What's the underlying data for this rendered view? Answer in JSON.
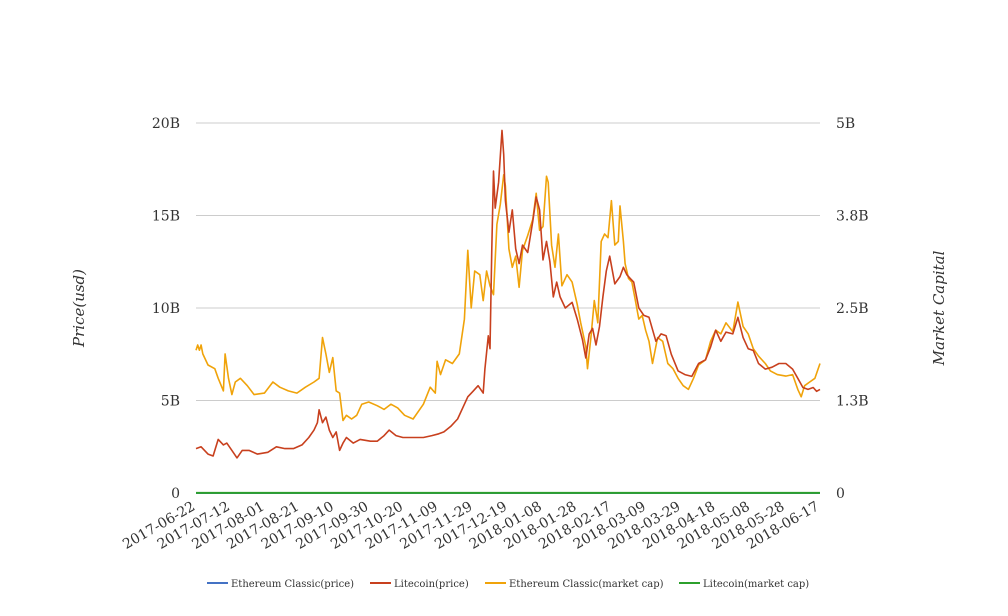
{
  "chart_data": {
    "type": "line",
    "ylabel_left": "Price(usd)",
    "ylabel_right": "Market Capital",
    "left_ticks": [
      "0",
      "5B",
      "10B",
      "15B",
      "20B"
    ],
    "right_ticks": [
      "0",
      "1.3B",
      "2.5B",
      "3.8B",
      "5B"
    ],
    "left_ylim": [
      0,
      20
    ],
    "right_ylim": [
      0,
      5
    ],
    "x_ticks": [
      "2017-06-22",
      "2017-07-12",
      "2017-08-01",
      "2017-08-21",
      "2017-09-10",
      "2017-09-30",
      "2017-10-20",
      "2017-11-09",
      "2017-11-29",
      "2017-12-19",
      "2018-01-08",
      "2018-01-28",
      "2018-02-17",
      "2018-03-09",
      "2018-03-29",
      "2018-04-18",
      "2018-05-08",
      "2018-05-28",
      "2018-06-17"
    ],
    "x_range": [
      "2017-06-22",
      "2018-06-22"
    ],
    "grid": "horizontal",
    "legend_position": "bottom",
    "series": [
      {
        "name": "Ethereum Classic(price)",
        "color": "#4472c4",
        "axis": "left",
        "points": [
          [
            "2017-06-22",
            0.001
          ],
          [
            "2018-06-22",
            0.001
          ]
        ]
      },
      {
        "name": "Litecoin(price)",
        "color": "#c8401e",
        "axis": "left",
        "points": [
          [
            "2017-06-22",
            2.4
          ],
          [
            "2017-06-25",
            2.5
          ],
          [
            "2017-06-29",
            2.1
          ],
          [
            "2017-07-02",
            2.0
          ],
          [
            "2017-07-05",
            2.9
          ],
          [
            "2017-07-08",
            2.6
          ],
          [
            "2017-07-10",
            2.7
          ],
          [
            "2017-07-13",
            2.3
          ],
          [
            "2017-07-16",
            1.9
          ],
          [
            "2017-07-19",
            2.3
          ],
          [
            "2017-07-23",
            2.3
          ],
          [
            "2017-07-28",
            2.1
          ],
          [
            "2017-08-03",
            2.2
          ],
          [
            "2017-08-08",
            2.5
          ],
          [
            "2017-08-13",
            2.4
          ],
          [
            "2017-08-18",
            2.4
          ],
          [
            "2017-08-23",
            2.6
          ],
          [
            "2017-08-27",
            3.0
          ],
          [
            "2017-08-30",
            3.4
          ],
          [
            "2017-09-01",
            3.8
          ],
          [
            "2017-09-02",
            4.5
          ],
          [
            "2017-09-04",
            3.8
          ],
          [
            "2017-09-06",
            4.1
          ],
          [
            "2017-09-08",
            3.4
          ],
          [
            "2017-09-10",
            3.0
          ],
          [
            "2017-09-12",
            3.3
          ],
          [
            "2017-09-14",
            2.3
          ],
          [
            "2017-09-16",
            2.7
          ],
          [
            "2017-09-18",
            3.0
          ],
          [
            "2017-09-22",
            2.7
          ],
          [
            "2017-09-26",
            2.9
          ],
          [
            "2017-10-02",
            2.8
          ],
          [
            "2017-10-06",
            2.8
          ],
          [
            "2017-10-10",
            3.1
          ],
          [
            "2017-10-13",
            3.4
          ],
          [
            "2017-10-17",
            3.1
          ],
          [
            "2017-10-21",
            3.0
          ],
          [
            "2017-10-27",
            3.0
          ],
          [
            "2017-11-02",
            3.0
          ],
          [
            "2017-11-07",
            3.1
          ],
          [
            "2017-11-11",
            3.2
          ],
          [
            "2017-11-14",
            3.3
          ],
          [
            "2017-11-18",
            3.6
          ],
          [
            "2017-11-22",
            4.0
          ],
          [
            "2017-11-25",
            4.6
          ],
          [
            "2017-11-28",
            5.2
          ],
          [
            "2017-12-01",
            5.5
          ],
          [
            "2017-12-04",
            5.8
          ],
          [
            "2017-12-07",
            5.4
          ],
          [
            "2017-12-08",
            6.7
          ],
          [
            "2017-12-10",
            8.5
          ],
          [
            "2017-12-11",
            7.8
          ],
          [
            "2017-12-12",
            13.2
          ],
          [
            "2017-12-13",
            17.4
          ],
          [
            "2017-12-14",
            15.4
          ],
          [
            "2017-12-16",
            16.8
          ],
          [
            "2017-12-18",
            19.6
          ],
          [
            "2017-12-19",
            18.3
          ],
          [
            "2017-12-20",
            15.8
          ],
          [
            "2017-12-22",
            14.1
          ],
          [
            "2017-12-24",
            15.3
          ],
          [
            "2017-12-26",
            13.2
          ],
          [
            "2017-12-28",
            12.4
          ],
          [
            "2017-12-30",
            13.4
          ],
          [
            "2018-01-02",
            13.0
          ],
          [
            "2018-01-05",
            14.7
          ],
          [
            "2018-01-07",
            16.0
          ],
          [
            "2018-01-09",
            15.3
          ],
          [
            "2018-01-11",
            12.6
          ],
          [
            "2018-01-13",
            13.6
          ],
          [
            "2018-01-15",
            12.5
          ],
          [
            "2018-01-17",
            10.6
          ],
          [
            "2018-01-19",
            11.4
          ],
          [
            "2018-01-21",
            10.6
          ],
          [
            "2018-01-24",
            10.0
          ],
          [
            "2018-01-28",
            10.3
          ],
          [
            "2018-01-31",
            9.4
          ],
          [
            "2018-02-03",
            8.3
          ],
          [
            "2018-02-05",
            7.3
          ],
          [
            "2018-02-07",
            8.6
          ],
          [
            "2018-02-09",
            8.9
          ],
          [
            "2018-02-11",
            8.0
          ],
          [
            "2018-02-13",
            9.0
          ],
          [
            "2018-02-15",
            10.6
          ],
          [
            "2018-02-17",
            12.0
          ],
          [
            "2018-02-19",
            12.8
          ],
          [
            "2018-02-22",
            11.3
          ],
          [
            "2018-02-25",
            11.7
          ],
          [
            "2018-02-27",
            12.2
          ],
          [
            "2018-03-01",
            11.8
          ],
          [
            "2018-03-03",
            11.6
          ],
          [
            "2018-03-05",
            11.4
          ],
          [
            "2018-03-08",
            10.0
          ],
          [
            "2018-03-11",
            9.6
          ],
          [
            "2018-03-14",
            9.5
          ],
          [
            "2018-03-18",
            8.2
          ],
          [
            "2018-03-21",
            8.6
          ],
          [
            "2018-03-24",
            8.5
          ],
          [
            "2018-03-27",
            7.5
          ],
          [
            "2018-03-31",
            6.6
          ],
          [
            "2018-04-04",
            6.4
          ],
          [
            "2018-04-08",
            6.3
          ],
          [
            "2018-04-12",
            7.0
          ],
          [
            "2018-04-16",
            7.2
          ],
          [
            "2018-04-19",
            7.9
          ],
          [
            "2018-04-22",
            8.8
          ],
          [
            "2018-04-25",
            8.2
          ],
          [
            "2018-04-28",
            8.7
          ],
          [
            "2018-05-02",
            8.6
          ],
          [
            "2018-05-05",
            9.5
          ],
          [
            "2018-05-08",
            8.4
          ],
          [
            "2018-05-11",
            7.8
          ],
          [
            "2018-05-14",
            7.7
          ],
          [
            "2018-05-17",
            7.0
          ],
          [
            "2018-05-21",
            6.7
          ],
          [
            "2018-05-25",
            6.8
          ],
          [
            "2018-05-29",
            7.0
          ],
          [
            "2018-06-02",
            7.0
          ],
          [
            "2018-06-06",
            6.7
          ],
          [
            "2018-06-09",
            6.2
          ],
          [
            "2018-06-12",
            5.7
          ],
          [
            "2018-06-15",
            5.6
          ],
          [
            "2018-06-18",
            5.7
          ],
          [
            "2018-06-20",
            5.5
          ],
          [
            "2018-06-22",
            5.6
          ]
        ]
      },
      {
        "name": "Ethereum Classic(market cap)",
        "color": "#f0a30a",
        "axis": "right",
        "points": [
          [
            "2017-06-22",
            1.93
          ],
          [
            "2017-06-23",
            2.0
          ],
          [
            "2017-06-24",
            1.93
          ],
          [
            "2017-06-25",
            2.0
          ],
          [
            "2017-06-26",
            1.88
          ],
          [
            "2017-06-29",
            1.73
          ],
          [
            "2017-07-03",
            1.68
          ],
          [
            "2017-07-05",
            1.55
          ],
          [
            "2017-07-08",
            1.38
          ],
          [
            "2017-07-09",
            1.88
          ],
          [
            "2017-07-11",
            1.55
          ],
          [
            "2017-07-13",
            1.33
          ],
          [
            "2017-07-15",
            1.5
          ],
          [
            "2017-07-18",
            1.55
          ],
          [
            "2017-07-22",
            1.45
          ],
          [
            "2017-07-26",
            1.33
          ],
          [
            "2017-08-01",
            1.35
          ],
          [
            "2017-08-06",
            1.5
          ],
          [
            "2017-08-10",
            1.43
          ],
          [
            "2017-08-15",
            1.38
          ],
          [
            "2017-08-20",
            1.35
          ],
          [
            "2017-08-25",
            1.43
          ],
          [
            "2017-08-30",
            1.5
          ],
          [
            "2017-09-02",
            1.55
          ],
          [
            "2017-09-04",
            2.1
          ],
          [
            "2017-09-06",
            1.88
          ],
          [
            "2017-09-08",
            1.63
          ],
          [
            "2017-09-10",
            1.83
          ],
          [
            "2017-09-12",
            1.38
          ],
          [
            "2017-09-14",
            1.35
          ],
          [
            "2017-09-16",
            0.98
          ],
          [
            "2017-09-18",
            1.05
          ],
          [
            "2017-09-21",
            1.0
          ],
          [
            "2017-09-24",
            1.05
          ],
          [
            "2017-09-27",
            1.2
          ],
          [
            "2017-10-01",
            1.23
          ],
          [
            "2017-10-06",
            1.18
          ],
          [
            "2017-10-10",
            1.13
          ],
          [
            "2017-10-14",
            1.2
          ],
          [
            "2017-10-18",
            1.15
          ],
          [
            "2017-10-22",
            1.05
          ],
          [
            "2017-10-27",
            1.0
          ],
          [
            "2017-11-02",
            1.2
          ],
          [
            "2017-11-06",
            1.43
          ],
          [
            "2017-11-09",
            1.35
          ],
          [
            "2017-11-10",
            1.78
          ],
          [
            "2017-11-12",
            1.6
          ],
          [
            "2017-11-15",
            1.8
          ],
          [
            "2017-11-19",
            1.75
          ],
          [
            "2017-11-23",
            1.88
          ],
          [
            "2017-11-26",
            2.35
          ],
          [
            "2017-11-28",
            3.28
          ],
          [
            "2017-11-30",
            2.5
          ],
          [
            "2017-12-02",
            3.0
          ],
          [
            "2017-12-05",
            2.95
          ],
          [
            "2017-12-07",
            2.6
          ],
          [
            "2017-12-09",
            3.0
          ],
          [
            "2017-12-11",
            2.8
          ],
          [
            "2017-12-13",
            2.68
          ],
          [
            "2017-12-15",
            3.63
          ],
          [
            "2017-12-17",
            3.9
          ],
          [
            "2017-12-19",
            4.3
          ],
          [
            "2017-12-20",
            4.15
          ],
          [
            "2017-12-22",
            3.3
          ],
          [
            "2017-12-24",
            3.05
          ],
          [
            "2017-12-26",
            3.2
          ],
          [
            "2017-12-28",
            2.78
          ],
          [
            "2017-12-30",
            3.28
          ],
          [
            "2018-01-02",
            3.48
          ],
          [
            "2018-01-05",
            3.7
          ],
          [
            "2018-01-07",
            4.05
          ],
          [
            "2018-01-09",
            3.55
          ],
          [
            "2018-01-11",
            3.6
          ],
          [
            "2018-01-13",
            4.28
          ],
          [
            "2018-01-14",
            4.2
          ],
          [
            "2018-01-16",
            3.35
          ],
          [
            "2018-01-18",
            3.05
          ],
          [
            "2018-01-20",
            3.5
          ],
          [
            "2018-01-22",
            2.8
          ],
          [
            "2018-01-25",
            2.95
          ],
          [
            "2018-01-28",
            2.85
          ],
          [
            "2018-01-31",
            2.55
          ],
          [
            "2018-02-02",
            2.3
          ],
          [
            "2018-02-05",
            1.98
          ],
          [
            "2018-02-06",
            1.68
          ],
          [
            "2018-02-08",
            2.1
          ],
          [
            "2018-02-10",
            2.6
          ],
          [
            "2018-02-12",
            2.3
          ],
          [
            "2018-02-14",
            3.4
          ],
          [
            "2018-02-16",
            3.5
          ],
          [
            "2018-02-18",
            3.45
          ],
          [
            "2018-02-20",
            3.95
          ],
          [
            "2018-02-22",
            3.35
          ],
          [
            "2018-02-24",
            3.4
          ],
          [
            "2018-02-25",
            3.88
          ],
          [
            "2018-02-27",
            3.4
          ],
          [
            "2018-02-28",
            3.1
          ],
          [
            "2018-03-02",
            2.9
          ],
          [
            "2018-03-04",
            2.85
          ],
          [
            "2018-03-06",
            2.6
          ],
          [
            "2018-03-08",
            2.35
          ],
          [
            "2018-03-10",
            2.4
          ],
          [
            "2018-03-12",
            2.2
          ],
          [
            "2018-03-14",
            2.05
          ],
          [
            "2018-03-16",
            1.75
          ],
          [
            "2018-03-19",
            2.1
          ],
          [
            "2018-03-22",
            2.05
          ],
          [
            "2018-03-25",
            1.75
          ],
          [
            "2018-03-28",
            1.68
          ],
          [
            "2018-03-31",
            1.55
          ],
          [
            "2018-04-03",
            1.45
          ],
          [
            "2018-04-06",
            1.4
          ],
          [
            "2018-04-09",
            1.55
          ],
          [
            "2018-04-12",
            1.73
          ],
          [
            "2018-04-16",
            1.8
          ],
          [
            "2018-04-19",
            2.05
          ],
          [
            "2018-04-22",
            2.2
          ],
          [
            "2018-04-25",
            2.15
          ],
          [
            "2018-04-28",
            2.3
          ],
          [
            "2018-05-02",
            2.18
          ],
          [
            "2018-05-05",
            2.58
          ],
          [
            "2018-05-08",
            2.25
          ],
          [
            "2018-05-11",
            2.15
          ],
          [
            "2018-05-14",
            1.95
          ],
          [
            "2018-05-17",
            1.85
          ],
          [
            "2018-05-21",
            1.75
          ],
          [
            "2018-05-24",
            1.65
          ],
          [
            "2018-05-28",
            1.6
          ],
          [
            "2018-06-02",
            1.58
          ],
          [
            "2018-06-06",
            1.6
          ],
          [
            "2018-06-09",
            1.4
          ],
          [
            "2018-06-11",
            1.3
          ],
          [
            "2018-06-13",
            1.45
          ],
          [
            "2018-06-16",
            1.5
          ],
          [
            "2018-06-19",
            1.55
          ],
          [
            "2018-06-22",
            1.75
          ]
        ]
      },
      {
        "name": "Litecoin(market cap)",
        "color": "#2ca02c",
        "axis": "right",
        "points": [
          [
            "2017-06-22",
            0.001
          ],
          [
            "2018-06-22",
            0.001
          ]
        ]
      }
    ]
  }
}
